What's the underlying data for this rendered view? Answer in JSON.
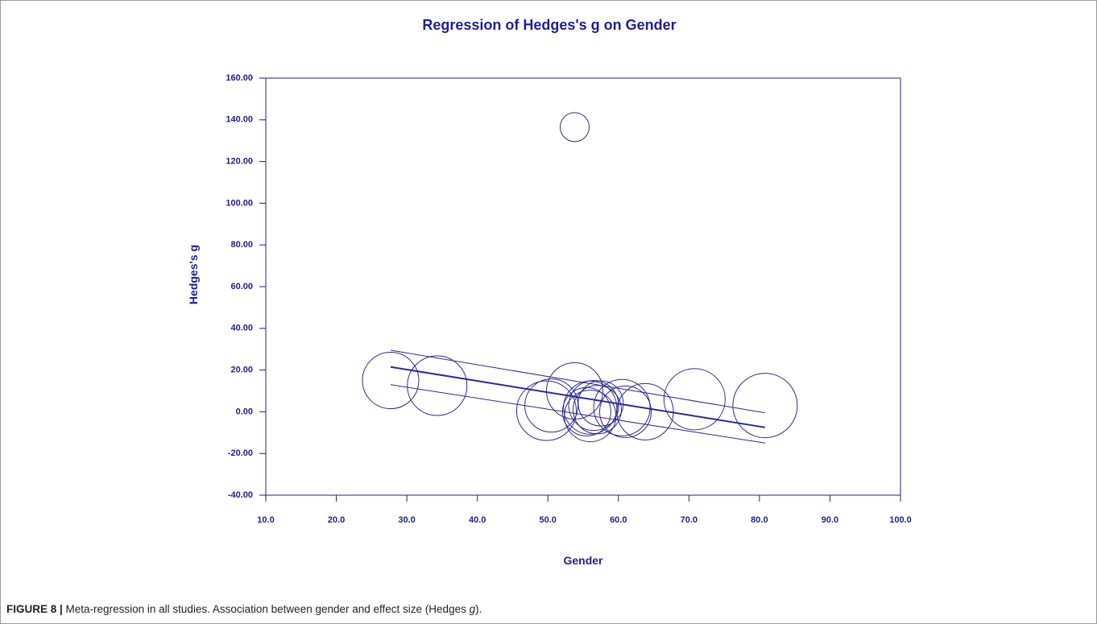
{
  "chart_data": {
    "type": "bubble",
    "title": "Regression of Hedges's g on Gender",
    "xlabel": "Gender",
    "ylabel": "Hedges's g",
    "x": [
      27.7,
      34.3,
      49.8,
      50.5,
      53.8,
      53.8,
      55.5,
      56.0,
      56.5,
      57.0,
      57.5,
      56.0,
      60.5,
      61.0,
      63.8,
      70.8,
      80.8
    ],
    "values": [
      15,
      12.5,
      0.5,
      3,
      10,
      136.5,
      0,
      2,
      3,
      1,
      4,
      -2,
      2,
      0,
      0,
      6,
      3
    ],
    "sizes": [
      35,
      37,
      37,
      33,
      35,
      18,
      30,
      33,
      31,
      30,
      28,
      32,
      35,
      32,
      35,
      38,
      40
    ],
    "color": "#2b2b8c",
    "regression": {
      "x": [
        27.7,
        80.8
      ],
      "values": [
        21.5,
        -7.5
      ]
    },
    "ci_upper": {
      "x": [
        27.7,
        80.8
      ],
      "values": [
        29.5,
        -0.5
      ]
    },
    "ci_lower": {
      "x": [
        27.7,
        80.8
      ],
      "values": [
        13,
        -15
      ]
    },
    "xlim": [
      10,
      100
    ],
    "xticks": [
      {
        "value": 10,
        "label": "10.0"
      },
      {
        "value": 20,
        "label": "20.0"
      },
      {
        "value": 30,
        "label": "30.0"
      },
      {
        "value": 40,
        "label": "40.0"
      },
      {
        "value": 50,
        "label": "50.0"
      },
      {
        "value": 60,
        "label": "60.0"
      },
      {
        "value": 70,
        "label": "70.0"
      },
      {
        "value": 80,
        "label": "80.0"
      },
      {
        "value": 90,
        "label": "90.0"
      },
      {
        "value": 100,
        "label": "100.0"
      }
    ],
    "ylim": [
      -40,
      160
    ],
    "yticks": [
      {
        "value": -40,
        "label": "-40.00"
      },
      {
        "value": -20,
        "label": "-20.00"
      },
      {
        "value": 0,
        "label": "0.00"
      },
      {
        "value": 20,
        "label": "20.00"
      },
      {
        "value": 40,
        "label": "40.00"
      },
      {
        "value": 60,
        "label": "60.00"
      },
      {
        "value": 80,
        "label": "80.00"
      },
      {
        "value": 100,
        "label": "100.00"
      },
      {
        "value": 120,
        "label": "120.00"
      },
      {
        "value": 140,
        "label": "140.00"
      },
      {
        "value": 160,
        "label": "160.00"
      }
    ]
  },
  "caption": {
    "label": "FIGURE 8 |",
    "text": " Meta-regression in all studies. Association between gender and effect size (Hedges ",
    "italic": "g",
    "end": ")."
  }
}
